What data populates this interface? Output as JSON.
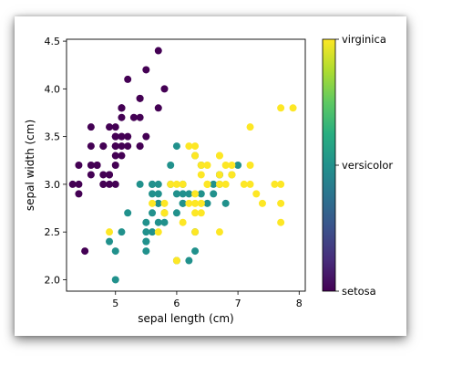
{
  "chart_data": {
    "type": "scatter",
    "title": "",
    "xlabel": "sepal length (cm)",
    "ylabel": "sepal width (cm)",
    "xlim": [
      4.2,
      8.1
    ],
    "ylim": [
      1.88,
      4.52
    ],
    "grid": false,
    "xticks": [
      5,
      6,
      7,
      8
    ],
    "yticks": [
      2.0,
      2.5,
      3.0,
      3.5,
      4.0,
      4.5
    ],
    "xtick_labels": [
      "5",
      "6",
      "7",
      "8"
    ],
    "ytick_labels": [
      "2.0",
      "2.5",
      "3.0",
      "3.5",
      "4.0",
      "4.5"
    ],
    "colormap": "viridis",
    "colors": {
      "setosa": "#440154",
      "versicolor": "#21918c",
      "virginica": "#fde725"
    },
    "colorbar": {
      "location": "right",
      "labels": [
        {
          "label": "virginica",
          "value": 2
        },
        {
          "label": "versicolor",
          "value": 1
        },
        {
          "label": "setosa",
          "value": 0
        }
      ]
    },
    "series": [
      {
        "class": "setosa",
        "color_value": 0,
        "points": [
          [
            5.1,
            3.5
          ],
          [
            4.9,
            3.0
          ],
          [
            4.7,
            3.2
          ],
          [
            4.6,
            3.1
          ],
          [
            5.0,
            3.6
          ],
          [
            5.4,
            3.9
          ],
          [
            4.6,
            3.4
          ],
          [
            5.0,
            3.4
          ],
          [
            4.4,
            2.9
          ],
          [
            4.9,
            3.1
          ],
          [
            5.4,
            3.7
          ],
          [
            4.8,
            3.4
          ],
          [
            4.8,
            3.0
          ],
          [
            4.3,
            3.0
          ],
          [
            5.8,
            4.0
          ],
          [
            5.7,
            4.4
          ],
          [
            5.4,
            3.9
          ],
          [
            5.1,
            3.5
          ],
          [
            5.7,
            3.8
          ],
          [
            5.1,
            3.8
          ],
          [
            5.4,
            3.4
          ],
          [
            5.1,
            3.7
          ],
          [
            4.6,
            3.6
          ],
          [
            5.1,
            3.3
          ],
          [
            4.8,
            3.4
          ],
          [
            5.0,
            3.0
          ],
          [
            5.0,
            3.4
          ],
          [
            5.2,
            3.5
          ],
          [
            5.2,
            3.4
          ],
          [
            4.7,
            3.2
          ],
          [
            4.8,
            3.1
          ],
          [
            5.4,
            3.4
          ],
          [
            5.2,
            4.1
          ],
          [
            5.5,
            4.2
          ],
          [
            4.9,
            3.1
          ],
          [
            5.0,
            3.2
          ],
          [
            5.5,
            3.5
          ],
          [
            4.9,
            3.6
          ],
          [
            4.4,
            3.0
          ],
          [
            5.1,
            3.4
          ],
          [
            5.0,
            3.5
          ],
          [
            4.5,
            2.3
          ],
          [
            4.4,
            3.2
          ],
          [
            5.0,
            3.5
          ],
          [
            5.1,
            3.8
          ],
          [
            4.8,
            3.0
          ],
          [
            5.1,
            3.8
          ],
          [
            4.6,
            3.2
          ],
          [
            5.3,
            3.7
          ],
          [
            5.0,
            3.3
          ]
        ]
      },
      {
        "class": "versicolor",
        "color_value": 1,
        "points": [
          [
            7.0,
            3.2
          ],
          [
            6.4,
            3.2
          ],
          [
            6.9,
            3.1
          ],
          [
            5.5,
            2.3
          ],
          [
            6.5,
            2.8
          ],
          [
            5.7,
            2.8
          ],
          [
            6.3,
            3.3
          ],
          [
            4.9,
            2.4
          ],
          [
            6.6,
            2.9
          ],
          [
            5.2,
            2.7
          ],
          [
            5.0,
            2.0
          ],
          [
            5.9,
            3.0
          ],
          [
            6.0,
            2.2
          ],
          [
            6.1,
            2.9
          ],
          [
            5.6,
            2.9
          ],
          [
            6.7,
            3.1
          ],
          [
            5.6,
            3.0
          ],
          [
            5.8,
            2.7
          ],
          [
            6.2,
            2.2
          ],
          [
            5.6,
            2.5
          ],
          [
            5.9,
            3.2
          ],
          [
            6.1,
            2.8
          ],
          [
            6.3,
            2.5
          ],
          [
            6.1,
            2.8
          ],
          [
            6.4,
            2.9
          ],
          [
            6.6,
            3.0
          ],
          [
            6.8,
            2.8
          ],
          [
            6.7,
            3.0
          ],
          [
            6.0,
            2.9
          ],
          [
            5.7,
            2.6
          ],
          [
            5.5,
            2.4
          ],
          [
            5.5,
            2.4
          ],
          [
            5.8,
            2.7
          ],
          [
            6.0,
            2.7
          ],
          [
            5.4,
            3.0
          ],
          [
            6.0,
            3.4
          ],
          [
            6.7,
            3.1
          ],
          [
            6.3,
            2.3
          ],
          [
            5.6,
            3.0
          ],
          [
            5.5,
            2.5
          ],
          [
            5.5,
            2.6
          ],
          [
            6.1,
            3.0
          ],
          [
            5.8,
            2.6
          ],
          [
            5.0,
            2.3
          ],
          [
            5.6,
            2.7
          ],
          [
            5.7,
            3.0
          ],
          [
            5.7,
            2.9
          ],
          [
            6.2,
            2.9
          ],
          [
            5.1,
            2.5
          ],
          [
            5.7,
            2.8
          ]
        ]
      },
      {
        "class": "virginica",
        "color_value": 2,
        "points": [
          [
            6.3,
            3.3
          ],
          [
            5.8,
            2.7
          ],
          [
            7.1,
            3.0
          ],
          [
            6.3,
            2.9
          ],
          [
            6.5,
            3.0
          ],
          [
            7.6,
            3.0
          ],
          [
            4.9,
            2.5
          ],
          [
            7.3,
            2.9
          ],
          [
            6.7,
            2.5
          ],
          [
            7.2,
            3.6
          ],
          [
            6.5,
            3.2
          ],
          [
            6.4,
            2.7
          ],
          [
            6.8,
            3.0
          ],
          [
            5.7,
            2.5
          ],
          [
            5.8,
            2.8
          ],
          [
            6.4,
            3.2
          ],
          [
            6.5,
            3.0
          ],
          [
            7.7,
            3.8
          ],
          [
            7.7,
            2.6
          ],
          [
            6.0,
            2.2
          ],
          [
            6.9,
            3.2
          ],
          [
            5.6,
            2.8
          ],
          [
            7.7,
            2.8
          ],
          [
            6.3,
            2.7
          ],
          [
            6.7,
            3.3
          ],
          [
            7.2,
            3.2
          ],
          [
            6.2,
            2.8
          ],
          [
            6.1,
            3.0
          ],
          [
            6.4,
            2.8
          ],
          [
            7.2,
            3.0
          ],
          [
            7.4,
            2.8
          ],
          [
            7.9,
            3.8
          ],
          [
            6.4,
            2.8
          ],
          [
            6.3,
            2.8
          ],
          [
            6.1,
            2.6
          ],
          [
            7.7,
            3.0
          ],
          [
            6.3,
            3.4
          ],
          [
            6.4,
            3.1
          ],
          [
            6.0,
            3.0
          ],
          [
            6.9,
            3.1
          ],
          [
            6.7,
            3.1
          ],
          [
            6.9,
            3.1
          ],
          [
            5.8,
            2.7
          ],
          [
            6.8,
            3.2
          ],
          [
            6.7,
            3.3
          ],
          [
            6.7,
            3.0
          ],
          [
            6.3,
            2.5
          ],
          [
            6.5,
            3.0
          ],
          [
            6.2,
            3.4
          ],
          [
            5.9,
            3.0
          ]
        ]
      }
    ]
  }
}
